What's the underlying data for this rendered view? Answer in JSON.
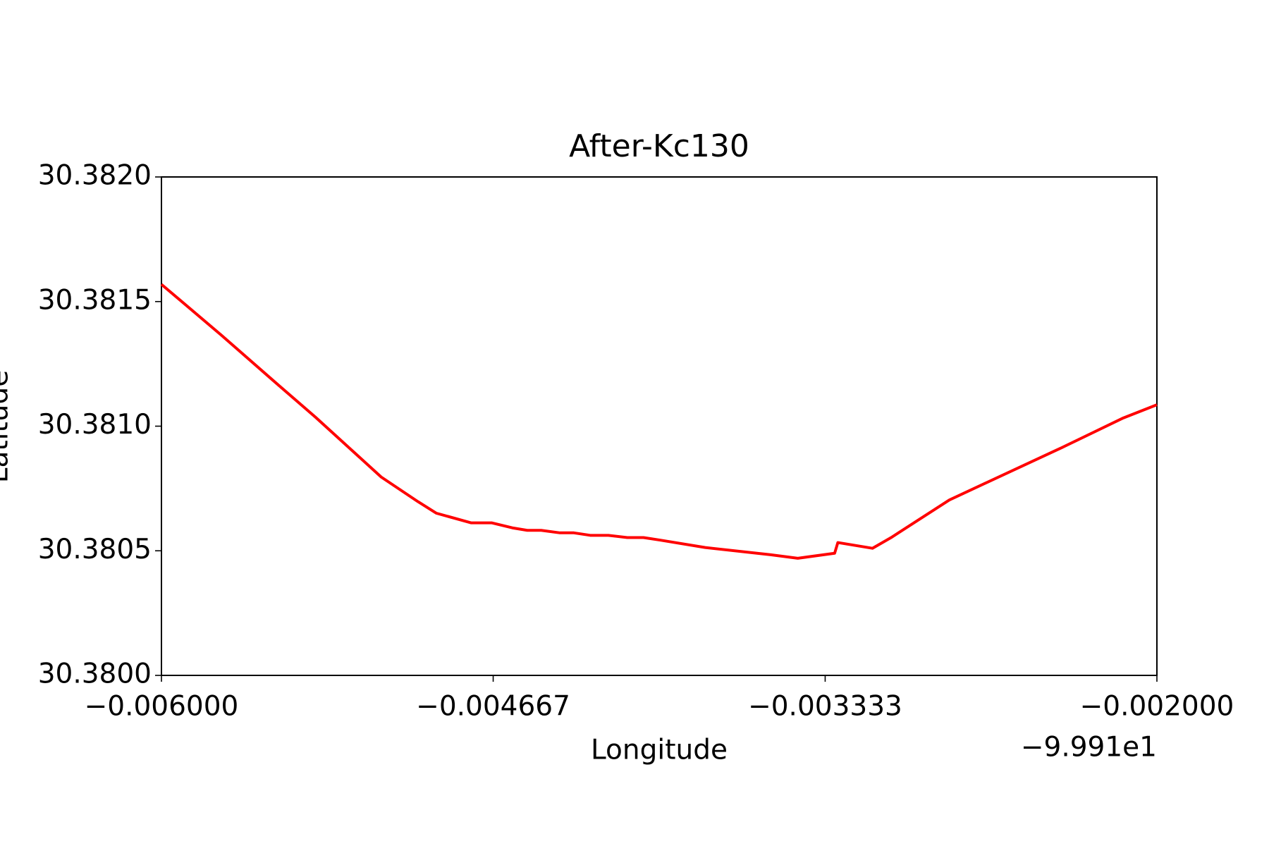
{
  "chart_data": {
    "type": "line",
    "title": "After-Kc130",
    "x_label": "Longitude",
    "y_label": "Latitude",
    "x_offset_label": "−9.991e1",
    "color": "#ff0000",
    "x": [
      -0.006,
      -0.005759,
      -0.005529,
      -0.005381,
      -0.005117,
      -0.004969,
      -0.004896,
      -0.004755,
      -0.004672,
      -0.00459,
      -0.00453,
      -0.004474,
      -0.004399,
      -0.004343,
      -0.004277,
      -0.004204,
      -0.004128,
      -0.004063,
      -0.003997,
      -0.003815,
      -0.003552,
      -0.003443,
      -0.003295,
      -0.003282,
      -0.003143,
      -0.003068,
      -0.002834,
      -0.002382,
      -0.002135,
      -0.002
    ],
    "values": [
      30.381569,
      30.381365,
      30.381164,
      30.381036,
      30.380796,
      30.380697,
      30.380651,
      30.380612,
      30.380612,
      30.380592,
      30.380582,
      30.380582,
      30.380572,
      30.380572,
      30.380562,
      30.380562,
      30.380553,
      30.380553,
      30.380543,
      30.380513,
      30.380484,
      30.38047,
      30.38049,
      30.380533,
      30.38051,
      30.380553,
      30.380704,
      30.380914,
      30.381033,
      30.381086
    ],
    "xlim": [
      -0.006,
      -0.002
    ],
    "xticks": [
      {
        "value": -0.006,
        "label": "−0.006000"
      },
      {
        "value": -0.004667,
        "label": "−0.004667"
      },
      {
        "value": -0.003333,
        "label": "−0.003333"
      },
      {
        "value": -0.002,
        "label": "−0.002000"
      }
    ],
    "ylim": [
      30.38,
      30.382
    ],
    "yticks": [
      {
        "value": 30.38,
        "label": "30.3800"
      },
      {
        "value": 30.3805,
        "label": "30.3805"
      },
      {
        "value": 30.381,
        "label": "30.3810"
      },
      {
        "value": 30.3815,
        "label": "30.3815"
      },
      {
        "value": 30.382,
        "label": "30.3820"
      }
    ],
    "grid": false
  }
}
